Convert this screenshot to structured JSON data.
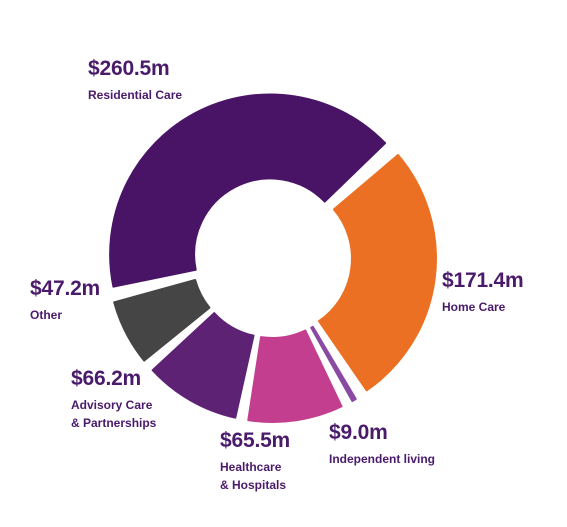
{
  "chart_data": {
    "type": "pie",
    "variant": "donut",
    "categories": [
      "Residential Care",
      "Home Care",
      "Independent living",
      "Healthcare\n& Hospitals",
      "Advisory Care\n& Partnerships",
      "Other"
    ],
    "values": [
      260.5,
      171.4,
      9.0,
      65.5,
      66.2,
      47.2
    ],
    "value_labels": [
      "$260.5m",
      "$171.4m",
      "$9.0m",
      "$65.5m",
      "$66.2m",
      "$47.2m"
    ],
    "unit": "$m",
    "colors": [
      "#4a1466",
      "#ec7023",
      "#8a4aa3",
      "#c43e90",
      "#5e2275",
      "#454545"
    ],
    "legend": "none",
    "grid": false
  }
}
